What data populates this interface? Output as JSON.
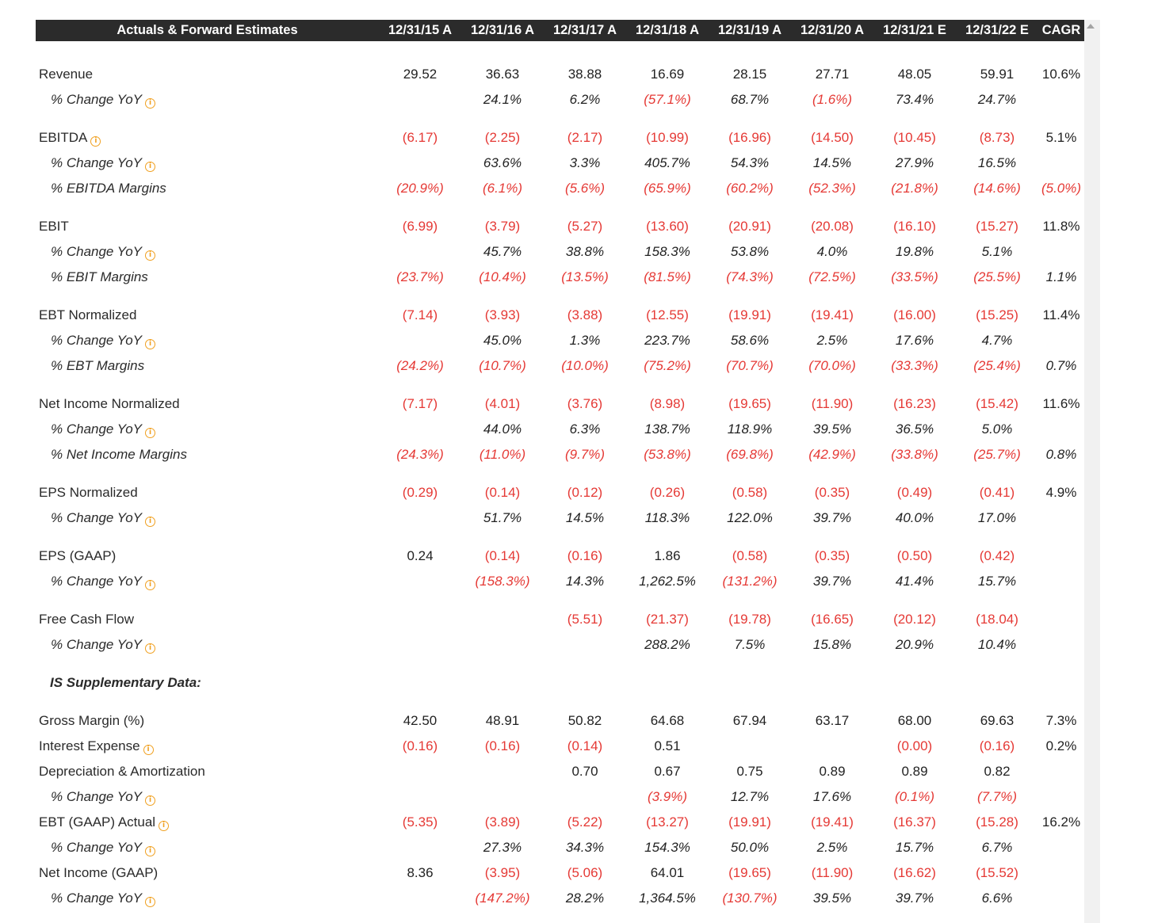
{
  "header": {
    "title": "Actuals & Forward Estimates",
    "columns": [
      "12/31/15 A",
      "12/31/16 A",
      "12/31/17 A",
      "12/31/18 A",
      "12/31/19 A",
      "12/31/20 A",
      "12/31/21 E",
      "12/31/22 E"
    ],
    "cagr": "CAGR"
  },
  "rows": [
    {
      "type": "spacer-top"
    },
    {
      "type": "main",
      "label": "Revenue",
      "info": false,
      "values": [
        "29.52",
        "36.63",
        "38.88",
        "16.69",
        "28.15",
        "27.71",
        "48.05",
        "59.91"
      ],
      "cagr": "10.6%"
    },
    {
      "type": "sub",
      "label": "% Change YoY",
      "info": true,
      "values": [
        "",
        "24.1%",
        "6.2%",
        "(57.1%)",
        "68.7%",
        "(1.6%)",
        "73.4%",
        "24.7%"
      ],
      "cagr": ""
    },
    {
      "type": "spacer"
    },
    {
      "type": "main",
      "label": "EBITDA",
      "info": true,
      "values": [
        "(6.17)",
        "(2.25)",
        "(2.17)",
        "(10.99)",
        "(16.96)",
        "(14.50)",
        "(10.45)",
        "(8.73)"
      ],
      "cagr": "5.1%"
    },
    {
      "type": "sub",
      "label": "% Change YoY",
      "info": true,
      "values": [
        "",
        "63.6%",
        "3.3%",
        "405.7%",
        "54.3%",
        "14.5%",
        "27.9%",
        "16.5%"
      ],
      "cagr": ""
    },
    {
      "type": "sub",
      "label": "% EBITDA Margins",
      "info": false,
      "values": [
        "(20.9%)",
        "(6.1%)",
        "(5.6%)",
        "(65.9%)",
        "(60.2%)",
        "(52.3%)",
        "(21.8%)",
        "(14.6%)"
      ],
      "cagr": "(5.0%)"
    },
    {
      "type": "spacer"
    },
    {
      "type": "main",
      "label": "EBIT",
      "info": false,
      "values": [
        "(6.99)",
        "(3.79)",
        "(5.27)",
        "(13.60)",
        "(20.91)",
        "(20.08)",
        "(16.10)",
        "(15.27)"
      ],
      "cagr": "11.8%"
    },
    {
      "type": "sub",
      "label": "% Change YoY",
      "info": true,
      "values": [
        "",
        "45.7%",
        "38.8%",
        "158.3%",
        "53.8%",
        "4.0%",
        "19.8%",
        "5.1%"
      ],
      "cagr": ""
    },
    {
      "type": "sub",
      "label": "% EBIT Margins",
      "info": false,
      "values": [
        "(23.7%)",
        "(10.4%)",
        "(13.5%)",
        "(81.5%)",
        "(74.3%)",
        "(72.5%)",
        "(33.5%)",
        "(25.5%)"
      ],
      "cagr": "1.1%"
    },
    {
      "type": "spacer"
    },
    {
      "type": "main",
      "label": "EBT Normalized",
      "info": false,
      "values": [
        "(7.14)",
        "(3.93)",
        "(3.88)",
        "(12.55)",
        "(19.91)",
        "(19.41)",
        "(16.00)",
        "(15.25)"
      ],
      "cagr": "11.4%"
    },
    {
      "type": "sub",
      "label": "% Change YoY",
      "info": true,
      "values": [
        "",
        "45.0%",
        "1.3%",
        "223.7%",
        "58.6%",
        "2.5%",
        "17.6%",
        "4.7%"
      ],
      "cagr": ""
    },
    {
      "type": "sub",
      "label": "% EBT Margins",
      "info": false,
      "values": [
        "(24.2%)",
        "(10.7%)",
        "(10.0%)",
        "(75.2%)",
        "(70.7%)",
        "(70.0%)",
        "(33.3%)",
        "(25.4%)"
      ],
      "cagr": "0.7%"
    },
    {
      "type": "spacer"
    },
    {
      "type": "main",
      "label": "Net Income Normalized",
      "info": false,
      "values": [
        "(7.17)",
        "(4.01)",
        "(3.76)",
        "(8.98)",
        "(19.65)",
        "(11.90)",
        "(16.23)",
        "(15.42)"
      ],
      "cagr": "11.6%"
    },
    {
      "type": "sub",
      "label": "% Change YoY",
      "info": true,
      "values": [
        "",
        "44.0%",
        "6.3%",
        "138.7%",
        "118.9%",
        "39.5%",
        "36.5%",
        "5.0%"
      ],
      "cagr": ""
    },
    {
      "type": "sub",
      "label": "% Net Income Margins",
      "info": false,
      "values": [
        "(24.3%)",
        "(11.0%)",
        "(9.7%)",
        "(53.8%)",
        "(69.8%)",
        "(42.9%)",
        "(33.8%)",
        "(25.7%)"
      ],
      "cagr": "0.8%"
    },
    {
      "type": "spacer"
    },
    {
      "type": "main",
      "label": "EPS Normalized",
      "info": false,
      "values": [
        "(0.29)",
        "(0.14)",
        "(0.12)",
        "(0.26)",
        "(0.58)",
        "(0.35)",
        "(0.49)",
        "(0.41)"
      ],
      "cagr": "4.9%"
    },
    {
      "type": "sub",
      "label": "% Change YoY",
      "info": true,
      "values": [
        "",
        "51.7%",
        "14.5%",
        "118.3%",
        "122.0%",
        "39.7%",
        "40.0%",
        "17.0%"
      ],
      "cagr": ""
    },
    {
      "type": "spacer"
    },
    {
      "type": "main",
      "label": "EPS (GAAP)",
      "info": false,
      "values": [
        "0.24",
        "(0.14)",
        "(0.16)",
        "1.86",
        "(0.58)",
        "(0.35)",
        "(0.50)",
        "(0.42)"
      ],
      "cagr": ""
    },
    {
      "type": "sub",
      "label": "% Change YoY",
      "info": true,
      "values": [
        "",
        "(158.3%)",
        "14.3%",
        "1,262.5%",
        "(131.2%)",
        "39.7%",
        "41.4%",
        "15.7%"
      ],
      "cagr": ""
    },
    {
      "type": "spacer"
    },
    {
      "type": "main",
      "label": "Free Cash Flow",
      "info": false,
      "values": [
        "",
        "",
        "(5.51)",
        "(21.37)",
        "(19.78)",
        "(16.65)",
        "(20.12)",
        "(18.04)"
      ],
      "cagr": ""
    },
    {
      "type": "sub",
      "label": "% Change YoY",
      "info": true,
      "values": [
        "",
        "",
        "",
        "288.2%",
        "7.5%",
        "15.8%",
        "20.9%",
        "10.4%"
      ],
      "cagr": ""
    },
    {
      "type": "spacer-sm"
    },
    {
      "type": "supp",
      "label": "IS Supplementary Data:"
    },
    {
      "type": "spacer-sm"
    },
    {
      "type": "main",
      "label": "Gross Margin (%)",
      "info": false,
      "values": [
        "42.50",
        "48.91",
        "50.82",
        "64.68",
        "67.94",
        "63.17",
        "68.00",
        "69.63"
      ],
      "cagr": "7.3%"
    },
    {
      "type": "main",
      "label": "Interest Expense",
      "info": true,
      "values": [
        "(0.16)",
        "(0.16)",
        "(0.14)",
        "0.51",
        "",
        "",
        "(0.00)",
        "(0.16)"
      ],
      "cagr": "0.2%"
    },
    {
      "type": "main",
      "label": "Depreciation & Amortization",
      "info": false,
      "values": [
        "",
        "",
        "0.70",
        "0.67",
        "0.75",
        "0.89",
        "0.89",
        "0.82"
      ],
      "cagr": ""
    },
    {
      "type": "sub",
      "label": "% Change YoY",
      "info": true,
      "values": [
        "",
        "",
        "",
        "(3.9%)",
        "12.7%",
        "17.6%",
        "(0.1%)",
        "(7.7%)"
      ],
      "cagr": ""
    },
    {
      "type": "main",
      "label": "EBT (GAAP) Actual",
      "info": true,
      "values": [
        "(5.35)",
        "(3.89)",
        "(5.22)",
        "(13.27)",
        "(19.91)",
        "(19.41)",
        "(16.37)",
        "(15.28)"
      ],
      "cagr": "16.2%"
    },
    {
      "type": "sub",
      "label": "% Change YoY",
      "info": true,
      "values": [
        "",
        "27.3%",
        "34.3%",
        "154.3%",
        "50.0%",
        "2.5%",
        "15.7%",
        "6.7%"
      ],
      "cagr": ""
    },
    {
      "type": "main",
      "label": "Net Income (GAAP)",
      "info": false,
      "values": [
        "8.36",
        "(3.95)",
        "(5.06)",
        "64.01",
        "(19.65)",
        "(11.90)",
        "(16.62)",
        "(15.52)"
      ],
      "cagr": ""
    },
    {
      "type": "sub",
      "label": "% Change YoY",
      "info": true,
      "values": [
        "",
        "(147.2%)",
        "28.2%",
        "1,364.5%",
        "(130.7%)",
        "39.5%",
        "39.7%",
        "6.6%"
      ],
      "cagr": ""
    }
  ],
  "info_icon_glyph": "i",
  "colors": {
    "negative": "#e53935",
    "header_bg": "#2b2b2b",
    "info": "#f0a020"
  }
}
